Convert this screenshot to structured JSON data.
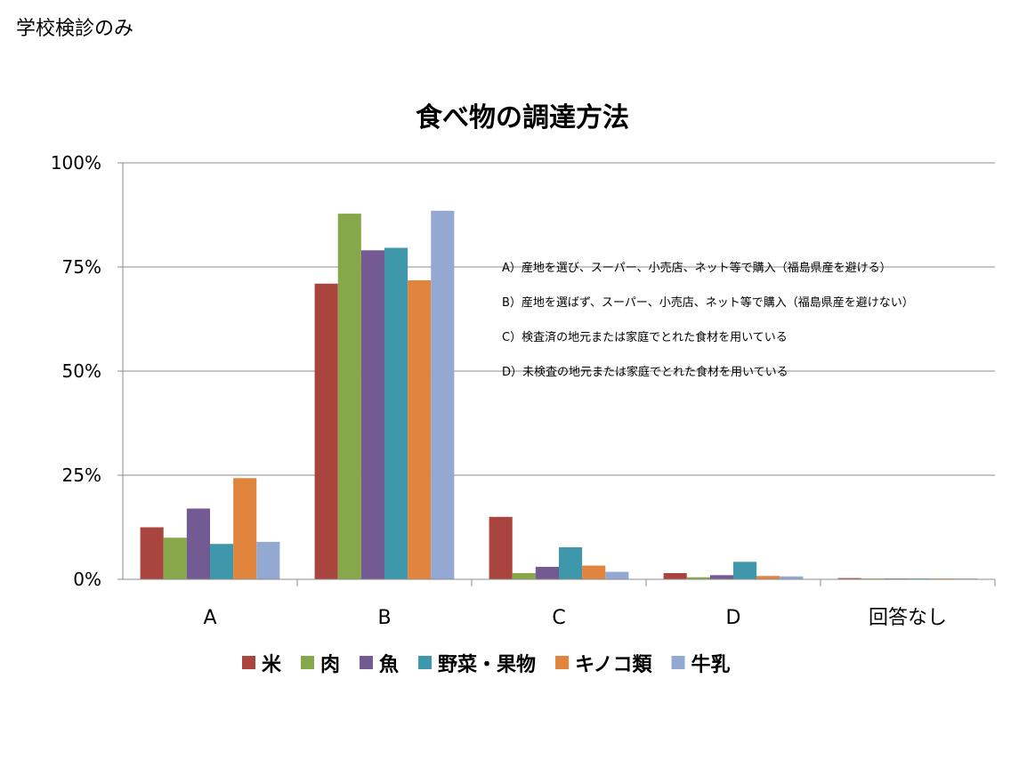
{
  "page": {
    "corner_label": "学校検診のみ"
  },
  "chart_data": {
    "type": "bar",
    "title": "食べ物の調達方法",
    "xlabel": "",
    "ylabel": "",
    "ylim": [
      0,
      1
    ],
    "yticks": [
      0,
      0.25,
      0.5,
      0.75,
      1.0
    ],
    "ytick_labels": [
      "0%",
      "25%",
      "50%",
      "75%",
      "100%"
    ],
    "grid": true,
    "categories": [
      "A",
      "B",
      "C",
      "D",
      "回答なし"
    ],
    "series": [
      {
        "name": "米",
        "color": "#a9443f",
        "values": [
          0.125,
          0.71,
          0.15,
          0.015,
          0.003
        ]
      },
      {
        "name": "肉",
        "color": "#86a84a",
        "values": [
          0.1,
          0.878,
          0.015,
          0.005,
          0.002
        ]
      },
      {
        "name": "魚",
        "color": "#735a93",
        "values": [
          0.17,
          0.79,
          0.03,
          0.01,
          0.002
        ]
      },
      {
        "name": "野菜・果物",
        "color": "#3e97aa",
        "values": [
          0.085,
          0.796,
          0.077,
          0.042,
          0.002
        ]
      },
      {
        "name": "キノコ類",
        "color": "#e0843e",
        "values": [
          0.243,
          0.718,
          0.033,
          0.008,
          0.002
        ]
      },
      {
        "name": "牛乳",
        "color": "#93a9d1",
        "values": [
          0.09,
          0.885,
          0.018,
          0.007,
          0.002
        ]
      }
    ],
    "legend_position": "bottom",
    "annotations": [
      "A）産地を選び、スーパー、小売店、ネット等で購入（福島県産を避ける）",
      "B）産地を選ばず、スーパー、小売店、ネット等で購入（福島県産を避けない）",
      "C）検査済の地元または家庭でとれた食材を用いている",
      "D）未検査の地元または家庭でとれた食材を用いている"
    ]
  }
}
